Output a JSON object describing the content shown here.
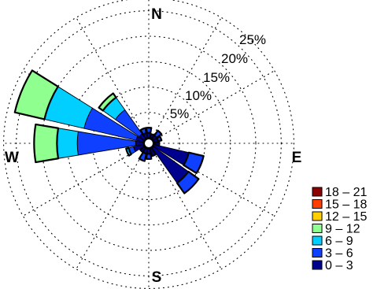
{
  "chart_data": {
    "type": "wind-rose",
    "directions": {
      "north": "N",
      "east": "E",
      "south": "S",
      "west": "W"
    },
    "radial_ticks": [
      "5%",
      "10%",
      "15%",
      "20%",
      "25%"
    ],
    "radial_values": [
      5,
      10,
      15,
      20,
      25
    ],
    "grid": "dotted",
    "legend_position": "bottom-right",
    "bins": [
      {
        "label": "0 – 3",
        "color": "#00008f"
      },
      {
        "label": "3 – 6",
        "color": "#0f3fff"
      },
      {
        "label": "6 – 9",
        "color": "#00cfff"
      },
      {
        "label": "9 – 12",
        "color": "#8fff8f"
      },
      {
        "label": "12 – 15",
        "color": "#ffcf00"
      },
      {
        "label": "15 – 18",
        "color": "#ff3f00"
      },
      {
        "label": "18 – 21",
        "color": "#8f0000"
      }
    ],
    "sectors": [
      {
        "direction_deg": 0,
        "cumulative": [
          1.0,
          2.0
        ]
      },
      {
        "direction_deg": 22.5,
        "cumulative": [
          0.8
        ]
      },
      {
        "direction_deg": 45,
        "cumulative": [
          0.8,
          2.0
        ]
      },
      {
        "direction_deg": 67.5,
        "cumulative": [
          0.8,
          1.5
        ]
      },
      {
        "direction_deg": 90,
        "cumulative": [
          1.0
        ]
      },
      {
        "direction_deg": 112.5,
        "cumulative": [
          7.0,
          10.0
        ]
      },
      {
        "direction_deg": 135,
        "cumulative": [
          8.5,
          11.0
        ]
      },
      {
        "direction_deg": 157.5,
        "cumulative": [
          1.5
        ]
      },
      {
        "direction_deg": 180,
        "cumulative": [
          1.0,
          2.0
        ]
      },
      {
        "direction_deg": 202.5,
        "cumulative": [
          1.0,
          2.5
        ]
      },
      {
        "direction_deg": 225,
        "cumulative": [
          1.0
        ]
      },
      {
        "direction_deg": 247.5,
        "cumulative": [
          2.0,
          3.0,
          3.5
        ]
      },
      {
        "direction_deg": 270,
        "cumulative": [
          1.5,
          13.0,
          17.0,
          21.5
        ]
      },
      {
        "direction_deg": 292.5,
        "cumulative": [
          1.5,
          12.0,
          20.0,
          26.0
        ]
      },
      {
        "direction_deg": 315,
        "cumulative": [
          1.2,
          7.0,
          10.0,
          11.0
        ]
      },
      {
        "direction_deg": 337.5,
        "cumulative": [
          1.0,
          2.0
        ]
      }
    ]
  }
}
